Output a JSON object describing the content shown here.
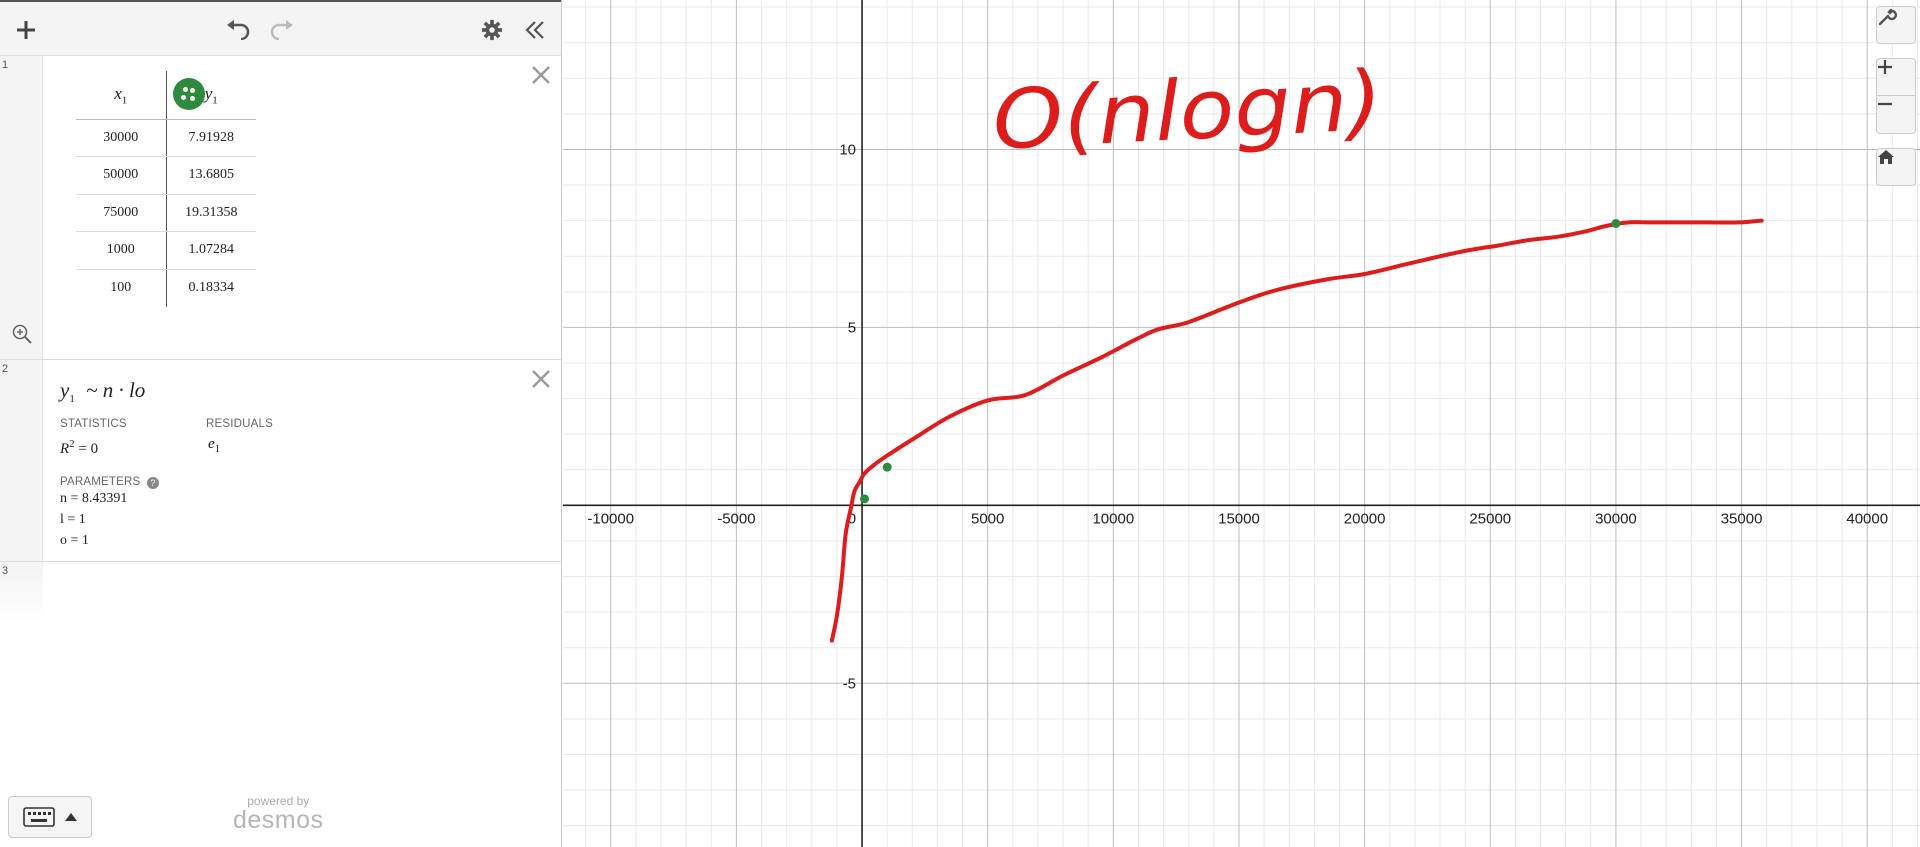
{
  "expressions": [
    {
      "index": "1",
      "type": "table",
      "headers": [
        "x",
        "y"
      ],
      "header_subs": [
        "1",
        "1"
      ],
      "rows": [
        [
          "30000",
          "7.91928"
        ],
        [
          "50000",
          "13.6805"
        ],
        [
          "75000",
          "19.31358"
        ],
        [
          "1000",
          "1.07284"
        ],
        [
          "100",
          "0.18334"
        ]
      ],
      "point_color": "#2e8b3d"
    },
    {
      "index": "2",
      "type": "regression",
      "lhs": "y",
      "lhs_sub": "1",
      "rhs": "~ n · lo",
      "statistics_label": "STATISTICS",
      "residuals_label": "RESIDUALS",
      "r2": "= 0",
      "residual_var": "e",
      "residual_sub": "1",
      "parameters_label": "PARAMETERS",
      "params": [
        "n = 8.43391",
        "l = 1",
        "o = 1"
      ]
    },
    {
      "index": "3",
      "type": "empty"
    }
  ],
  "powered_by": "powered by",
  "brand": "desmos",
  "chart_data": {
    "type": "line",
    "title": "",
    "xlabel": "",
    "ylabel": "",
    "xlim": [
      -11900,
      42100
    ],
    "ylim": [
      -9.6,
      14.2
    ],
    "x_ticks": [
      -10000,
      -5000,
      5000,
      10000,
      15000,
      20000,
      25000,
      30000,
      35000,
      40000
    ],
    "x_tick_labels": [
      "-10000",
      "-5000",
      "5000",
      "10000",
      "15000",
      "20000",
      "25000",
      "30000",
      "35000",
      "40000"
    ],
    "y_ticks": [
      10,
      5,
      -5
    ],
    "y_tick_labels": [
      "10",
      "5",
      "-5"
    ],
    "origin_label": "0",
    "grid": true,
    "series": [
      {
        "color": "#dd1c1c",
        "style": "freehand",
        "x": [
          -1200,
          -1000,
          -800,
          -650,
          -450,
          -300,
          -100,
          100,
          500,
          1000,
          2000,
          3500,
          5000,
          6500,
          8000,
          9500,
          11000,
          11800,
          13000,
          15000,
          16500,
          18500,
          20000,
          21500,
          22700,
          24000,
          25300,
          26500,
          27700,
          28800,
          29600,
          30500,
          31500,
          33500,
          34900,
          35800
        ],
        "y": [
          -3.8,
          -3.1,
          -2.0,
          -0.8,
          -0.1,
          0.4,
          0.65,
          0.9,
          1.15,
          1.4,
          1.85,
          2.5,
          2.95,
          3.1,
          3.65,
          4.15,
          4.7,
          4.95,
          5.15,
          5.7,
          6.05,
          6.35,
          6.5,
          6.75,
          6.95,
          7.15,
          7.3,
          7.45,
          7.55,
          7.7,
          7.85,
          7.95,
          7.95,
          7.95,
          7.95,
          8.0
        ]
      }
    ],
    "points": {
      "color": "#2e8b3d",
      "x": [
        30000,
        1000,
        100
      ],
      "y": [
        7.91928,
        1.07284,
        0.18334
      ]
    },
    "annotation": {
      "text": "O(nlogn)",
      "color": "#dd1c1c",
      "style": "handwritten"
    }
  }
}
